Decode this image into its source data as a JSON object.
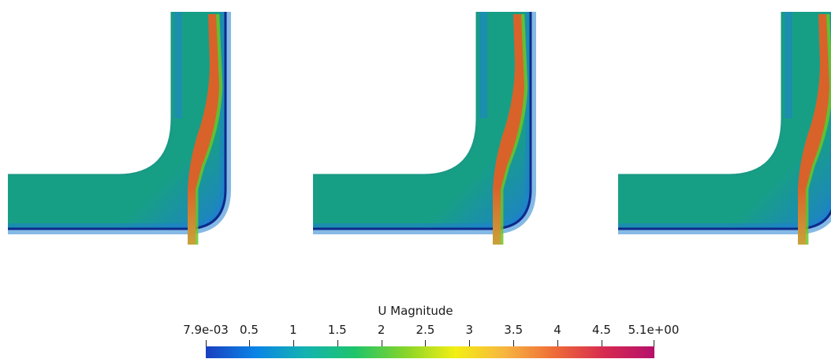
{
  "colorbar": {
    "title": "U Magnitude",
    "range": [
      0.0079,
      5.1
    ],
    "ticks": [
      {
        "value": 0.0079,
        "label": "7.9e-03"
      },
      {
        "value": 0.5,
        "label": "0.5"
      },
      {
        "value": 1,
        "label": "1"
      },
      {
        "value": 1.5,
        "label": "1.5"
      },
      {
        "value": 2,
        "label": "2"
      },
      {
        "value": 2.5,
        "label": "2.5"
      },
      {
        "value": 3,
        "label": "3"
      },
      {
        "value": 3.5,
        "label": "3.5"
      },
      {
        "value": 4,
        "label": "4"
      },
      {
        "value": 4.5,
        "label": "4.5"
      },
      {
        "value": 5.1,
        "label": "5.1e+00"
      }
    ],
    "colormap": [
      "#1b3fbf",
      "#0a84e6",
      "#13b3b0",
      "#1fc46a",
      "#86d42a",
      "#f3ef14",
      "#f7b540",
      "#ee6b38",
      "#d62a50",
      "#b5106c"
    ]
  },
  "field_colors": {
    "wall": "#0d2a8c",
    "near_wall": "#1f7fcf",
    "core": "#179f86",
    "inlet": "#1a9a84",
    "jet_edge": "#6fc424",
    "jet_core": "#d9622a",
    "jet_outlet": "#c8a23a"
  },
  "panels": [
    {
      "name": "panel-1"
    },
    {
      "name": "panel-2"
    },
    {
      "name": "panel-3"
    }
  ]
}
